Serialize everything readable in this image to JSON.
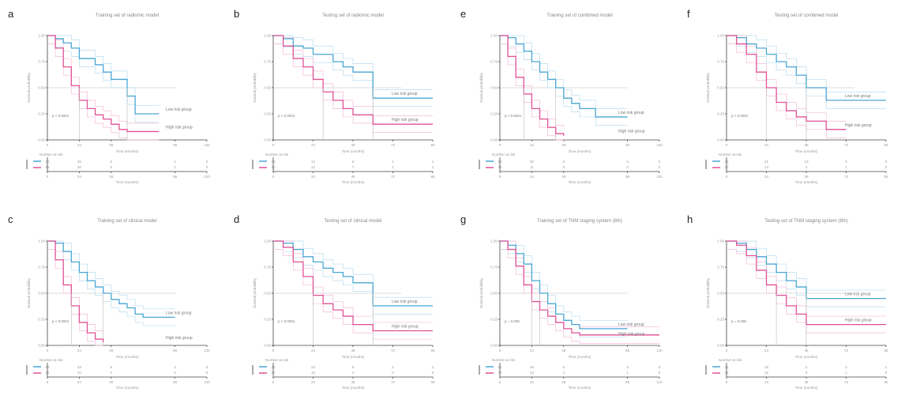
{
  "figure": {
    "colors": {
      "low": "#4aa6d3",
      "high": "#e05196",
      "low_ci": "#b9dcef",
      "high_ci": "#f3bcd6",
      "axis": "#444444"
    },
    "labels": {
      "y_axis": "Survival probability",
      "x_axis": "Time (months)",
      "risk_table_title": "Number at risk",
      "low_legend": "Low risk group",
      "high_legend": "High risk group"
    }
  },
  "chart_data": [
    {
      "letter": "a",
      "type": "line",
      "title": "Training set of radiomic model",
      "xlabel": "Time (months)",
      "ylabel": "Survival probability",
      "xticks": [
        "0",
        "24",
        "48",
        "96",
        "120"
      ],
      "xlim": [
        0,
        120
      ],
      "ylim": [
        0,
        1
      ],
      "yticks": [
        "0.00",
        "0.25",
        "0.50",
        "0.75",
        "1.00"
      ],
      "pvalue": "p < 0.0001",
      "series": [
        {
          "name": "Low risk group",
          "x": [
            0,
            6,
            12,
            18,
            24,
            30,
            36,
            42,
            48,
            54,
            60,
            66,
            84
          ],
          "y": [
            1.0,
            0.97,
            0.93,
            0.88,
            0.78,
            0.78,
            0.72,
            0.65,
            0.58,
            0.58,
            0.42,
            0.25,
            0.25
          ]
        },
        {
          "name": "High risk group",
          "x": [
            0,
            6,
            12,
            18,
            24,
            30,
            36,
            42,
            48,
            54,
            60,
            66,
            84
          ],
          "y": [
            1.0,
            0.88,
            0.7,
            0.52,
            0.38,
            0.3,
            0.24,
            0.2,
            0.15,
            0.1,
            0.08,
            0.08,
            0.08
          ]
        }
      ],
      "risk_table": {
        "low": [
          "20",
          "15",
          "8",
          "1",
          "0"
        ],
        "high": [
          "66",
          "20",
          "5",
          "1",
          "0"
        ],
        "xticks": [
          "0",
          "24",
          "48",
          "96",
          "120"
        ]
      }
    },
    {
      "letter": "b",
      "type": "line",
      "title": "Testing set of radiomic model",
      "xlabel": "Time (months)",
      "ylabel": "Survival probability",
      "xticks": [
        "0",
        "24",
        "48",
        "72",
        "96"
      ],
      "xlim": [
        0,
        96
      ],
      "ylim": [
        0,
        1
      ],
      "yticks": [
        "0.00",
        "0.25",
        "0.50",
        "0.75",
        "1.00"
      ],
      "pvalue": "p < 0.0001",
      "series": [
        {
          "name": "Low risk group",
          "x": [
            0,
            6,
            12,
            18,
            24,
            30,
            36,
            42,
            48,
            60,
            96
          ],
          "y": [
            1.0,
            0.97,
            0.9,
            0.88,
            0.82,
            0.82,
            0.75,
            0.7,
            0.65,
            0.4,
            0.4
          ]
        },
        {
          "name": "High risk group",
          "x": [
            0,
            6,
            12,
            18,
            24,
            30,
            36,
            42,
            48,
            60,
            96
          ],
          "y": [
            1.0,
            0.9,
            0.78,
            0.7,
            0.58,
            0.46,
            0.38,
            0.3,
            0.24,
            0.15,
            0.15
          ]
        }
      ],
      "risk_table": {
        "low": [
          "13",
          "13",
          "6",
          "1",
          "1"
        ],
        "high": [
          "40",
          "22",
          "7",
          "1",
          "1"
        ],
        "xticks": [
          "0",
          "24",
          "48",
          "72",
          "96"
        ]
      }
    },
    {
      "letter": "e",
      "type": "line",
      "title": "Training set of combined model",
      "xlabel": "Time (months)",
      "ylabel": "Survival probability",
      "xticks": [
        "0",
        "24",
        "48",
        "96",
        "120"
      ],
      "xlim": [
        0,
        120
      ],
      "ylim": [
        0,
        1
      ],
      "yticks": [
        "0.00",
        "0.25",
        "0.50",
        "0.75",
        "1.00"
      ],
      "pvalue": "p < 0.0001",
      "series": [
        {
          "name": "Low risk group",
          "x": [
            0,
            6,
            12,
            18,
            24,
            30,
            36,
            42,
            48,
            54,
            60,
            72,
            96
          ],
          "y": [
            1.0,
            0.98,
            0.92,
            0.85,
            0.75,
            0.65,
            0.58,
            0.5,
            0.4,
            0.35,
            0.3,
            0.22,
            0.22
          ]
        },
        {
          "name": "High risk group",
          "x": [
            0,
            6,
            12,
            18,
            24,
            30,
            36,
            42,
            48
          ],
          "y": [
            1.0,
            0.8,
            0.6,
            0.44,
            0.3,
            0.2,
            0.12,
            0.06,
            0.04
          ]
        }
      ],
      "risk_table": {
        "low": [
          "51",
          "30",
          "8",
          "4",
          "0"
        ],
        "high": [
          "44",
          "11",
          "0",
          "0",
          "0"
        ],
        "xticks": [
          "0",
          "24",
          "48",
          "96",
          "120"
        ]
      }
    },
    {
      "letter": "f",
      "type": "line",
      "title": "Testing set of combined model",
      "xlabel": "Time (months)",
      "ylabel": "Survival probability",
      "xticks": [
        "0",
        "24",
        "48",
        "72",
        "96"
      ],
      "xlim": [
        0,
        96
      ],
      "ylim": [
        0,
        1
      ],
      "yticks": [
        "0.00",
        "0.25",
        "0.50",
        "0.75",
        "1.00"
      ],
      "pvalue": "p < 0.0001",
      "series": [
        {
          "name": "Low risk group",
          "x": [
            0,
            6,
            12,
            18,
            24,
            30,
            36,
            42,
            48,
            60,
            96
          ],
          "y": [
            1.0,
            0.98,
            0.92,
            0.88,
            0.82,
            0.75,
            0.7,
            0.62,
            0.5,
            0.38,
            0.38
          ]
        },
        {
          "name": "High risk group",
          "x": [
            0,
            6,
            12,
            18,
            24,
            30,
            36,
            42,
            48,
            60,
            72
          ],
          "y": [
            1.0,
            0.92,
            0.82,
            0.65,
            0.5,
            0.36,
            0.28,
            0.22,
            0.18,
            0.1,
            0.1
          ]
        }
      ],
      "risk_table": {
        "low": [
          "26",
          "21",
          "10",
          "3",
          "0"
        ],
        "high": [
          "27",
          "14",
          "3",
          "1",
          "0"
        ],
        "xticks": [
          "0",
          "24",
          "48",
          "72",
          "96"
        ]
      }
    },
    {
      "letter": "c",
      "type": "line",
      "title": "Training set of clinical model",
      "xlabel": "Time (months)",
      "ylabel": "Survival probability",
      "xticks": [
        "0",
        "24",
        "48",
        "96",
        "120"
      ],
      "xlim": [
        0,
        120
      ],
      "ylim": [
        0,
        1
      ],
      "yticks": [
        "0.00",
        "0.25",
        "0.50",
        "0.75",
        "1.00"
      ],
      "pvalue": "p < 0.0001",
      "series": [
        {
          "name": "Low risk group",
          "x": [
            0,
            6,
            12,
            18,
            24,
            30,
            36,
            42,
            48,
            54,
            60,
            66,
            72,
            84,
            96
          ],
          "y": [
            1.0,
            0.98,
            0.9,
            0.8,
            0.7,
            0.62,
            0.56,
            0.5,
            0.44,
            0.4,
            0.36,
            0.3,
            0.27,
            0.27,
            0.27
          ]
        },
        {
          "name": "High risk group",
          "x": [
            0,
            6,
            12,
            18,
            24,
            30,
            36,
            42
          ],
          "y": [
            1.0,
            0.82,
            0.58,
            0.38,
            0.22,
            0.12,
            0.06,
            0.03
          ]
        }
      ],
      "risk_table": {
        "low": [
          "59",
          "33",
          "9",
          "4",
          "0"
        ],
        "high": [
          "42",
          "10",
          "0",
          "0",
          "0"
        ],
        "xticks": [
          "0",
          "24",
          "48",
          "96",
          "120"
        ]
      }
    },
    {
      "letter": "d",
      "type": "line",
      "title": "Testing set of clinical model",
      "xlabel": "Time (months)",
      "ylabel": "Survival probability",
      "xticks": [
        "0",
        "24",
        "48",
        "72",
        "96"
      ],
      "xlim": [
        0,
        96
      ],
      "ylim": [
        0,
        1
      ],
      "yticks": [
        "0.00",
        "0.25",
        "0.50",
        "0.75",
        "1.00"
      ],
      "pvalue": "p < 0.0001",
      "series": [
        {
          "name": "Low risk group",
          "x": [
            0,
            6,
            12,
            18,
            24,
            30,
            36,
            42,
            48,
            60,
            96
          ],
          "y": [
            1.0,
            0.98,
            0.92,
            0.85,
            0.8,
            0.74,
            0.7,
            0.66,
            0.6,
            0.38,
            0.38
          ]
        },
        {
          "name": "High risk group",
          "x": [
            0,
            6,
            12,
            18,
            24,
            30,
            36,
            42,
            48,
            60,
            96
          ],
          "y": [
            1.0,
            0.94,
            0.8,
            0.66,
            0.48,
            0.4,
            0.34,
            0.28,
            0.2,
            0.14,
            0.14
          ]
        }
      ],
      "risk_table": {
        "low": [
          "26",
          "23",
          "9",
          "2",
          "1"
        ],
        "high": [
          "27",
          "12",
          "4",
          "0",
          "0"
        ],
        "xticks": [
          "0",
          "24",
          "48",
          "72",
          "96"
        ]
      }
    },
    {
      "letter": "g",
      "type": "line",
      "title": "Training set of TNM staging system (8th)",
      "xlabel": "Time (months)",
      "ylabel": "Survival probability",
      "xticks": [
        "0",
        "24",
        "48",
        "96",
        "120"
      ],
      "xlim": [
        0,
        120
      ],
      "ylim": [
        0,
        1
      ],
      "yticks": [
        "0.00",
        "0.25",
        "0.50",
        "0.75",
        "1.00"
      ],
      "pvalue": "p = 0.005",
      "series": [
        {
          "name": "Low risk group",
          "x": [
            0,
            6,
            12,
            18,
            24,
            30,
            36,
            42,
            48,
            54,
            60,
            72,
            96
          ],
          "y": [
            1.0,
            0.96,
            0.88,
            0.78,
            0.62,
            0.5,
            0.4,
            0.3,
            0.24,
            0.2,
            0.16,
            0.16,
            0.16
          ]
        },
        {
          "name": "High risk group",
          "x": [
            0,
            6,
            12,
            18,
            24,
            30,
            36,
            42,
            48,
            54,
            60,
            72,
            120
          ],
          "y": [
            1.0,
            0.92,
            0.76,
            0.58,
            0.42,
            0.34,
            0.28,
            0.22,
            0.16,
            0.12,
            0.1,
            0.1,
            0.1
          ]
        }
      ],
      "risk_table": {
        "low": [
          "51",
          "26",
          "8",
          "3",
          "0"
        ],
        "high": [
          "77",
          "23",
          "4",
          "1",
          "0"
        ],
        "xticks": [
          "0",
          "24",
          "48",
          "96",
          "120"
        ]
      }
    },
    {
      "letter": "h",
      "type": "line",
      "title": "Testing set of TNM staging system (8th)",
      "xlabel": "Time (months)",
      "ylabel": "Survival probability",
      "xticks": [
        "0",
        "24",
        "48",
        "72",
        "96"
      ],
      "xlim": [
        0,
        96
      ],
      "ylim": [
        0,
        1
      ],
      "yticks": [
        "0.00",
        "0.25",
        "0.50",
        "0.75",
        "1.00"
      ],
      "pvalue": "p = 0.009",
      "series": [
        {
          "name": "Low risk group",
          "x": [
            0,
            6,
            12,
            18,
            24,
            30,
            36,
            42,
            48,
            60,
            96
          ],
          "y": [
            1.0,
            0.98,
            0.92,
            0.85,
            0.78,
            0.7,
            0.62,
            0.56,
            0.45,
            0.45,
            0.45
          ]
        },
        {
          "name": "High risk group",
          "x": [
            0,
            6,
            12,
            18,
            24,
            30,
            36,
            42,
            48,
            60,
            96
          ],
          "y": [
            1.0,
            0.96,
            0.86,
            0.72,
            0.58,
            0.48,
            0.38,
            0.3,
            0.2,
            0.2,
            0.2
          ]
        }
      ],
      "risk_table": {
        "low": [
          "21",
          "15",
          "4",
          "2",
          "1"
        ],
        "high": [
          "32",
          "12",
          "3",
          "1",
          "0"
        ],
        "xticks": [
          "0",
          "24",
          "48",
          "72",
          "96"
        ]
      }
    }
  ]
}
